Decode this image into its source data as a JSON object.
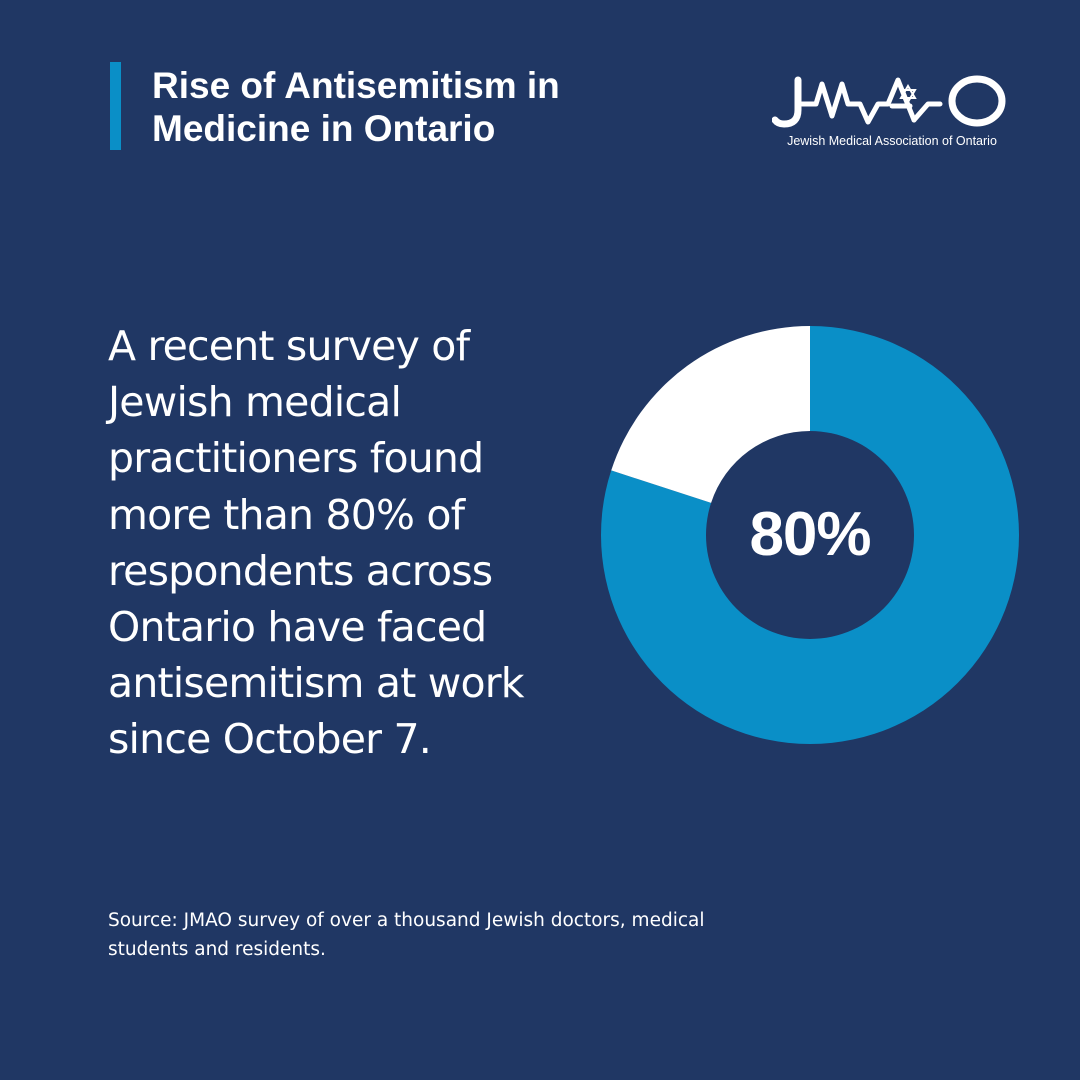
{
  "header": {
    "title": "Rise of Antisemitism in Medicine in Ontario",
    "accent_color": "#0a8fc7"
  },
  "logo": {
    "wordmark": "JMAO",
    "subtitle": "Jewish Medical Association of Ontario",
    "icon": "ekg-heartbeat-star-of-david-logo"
  },
  "main": {
    "body_text": "A recent survey of Jewish medical practitioners found more than 80% of respondents across Ontario have faced antisemitism at work since October 7."
  },
  "chart_data": {
    "type": "pie",
    "variant": "donut",
    "center_label": "80%",
    "slices": [
      {
        "value": 80,
        "color": "#0a8fc7"
      },
      {
        "value": 20,
        "color": "#ffffff"
      }
    ],
    "start": "top",
    "direction": "clockwise"
  },
  "footer": {
    "source": "Source: JMAO survey of over a thousand Jewish doctors, medical students and residents."
  },
  "colors": {
    "background": "#203764",
    "accent": "#0a8fc7",
    "text": "#ffffff"
  }
}
